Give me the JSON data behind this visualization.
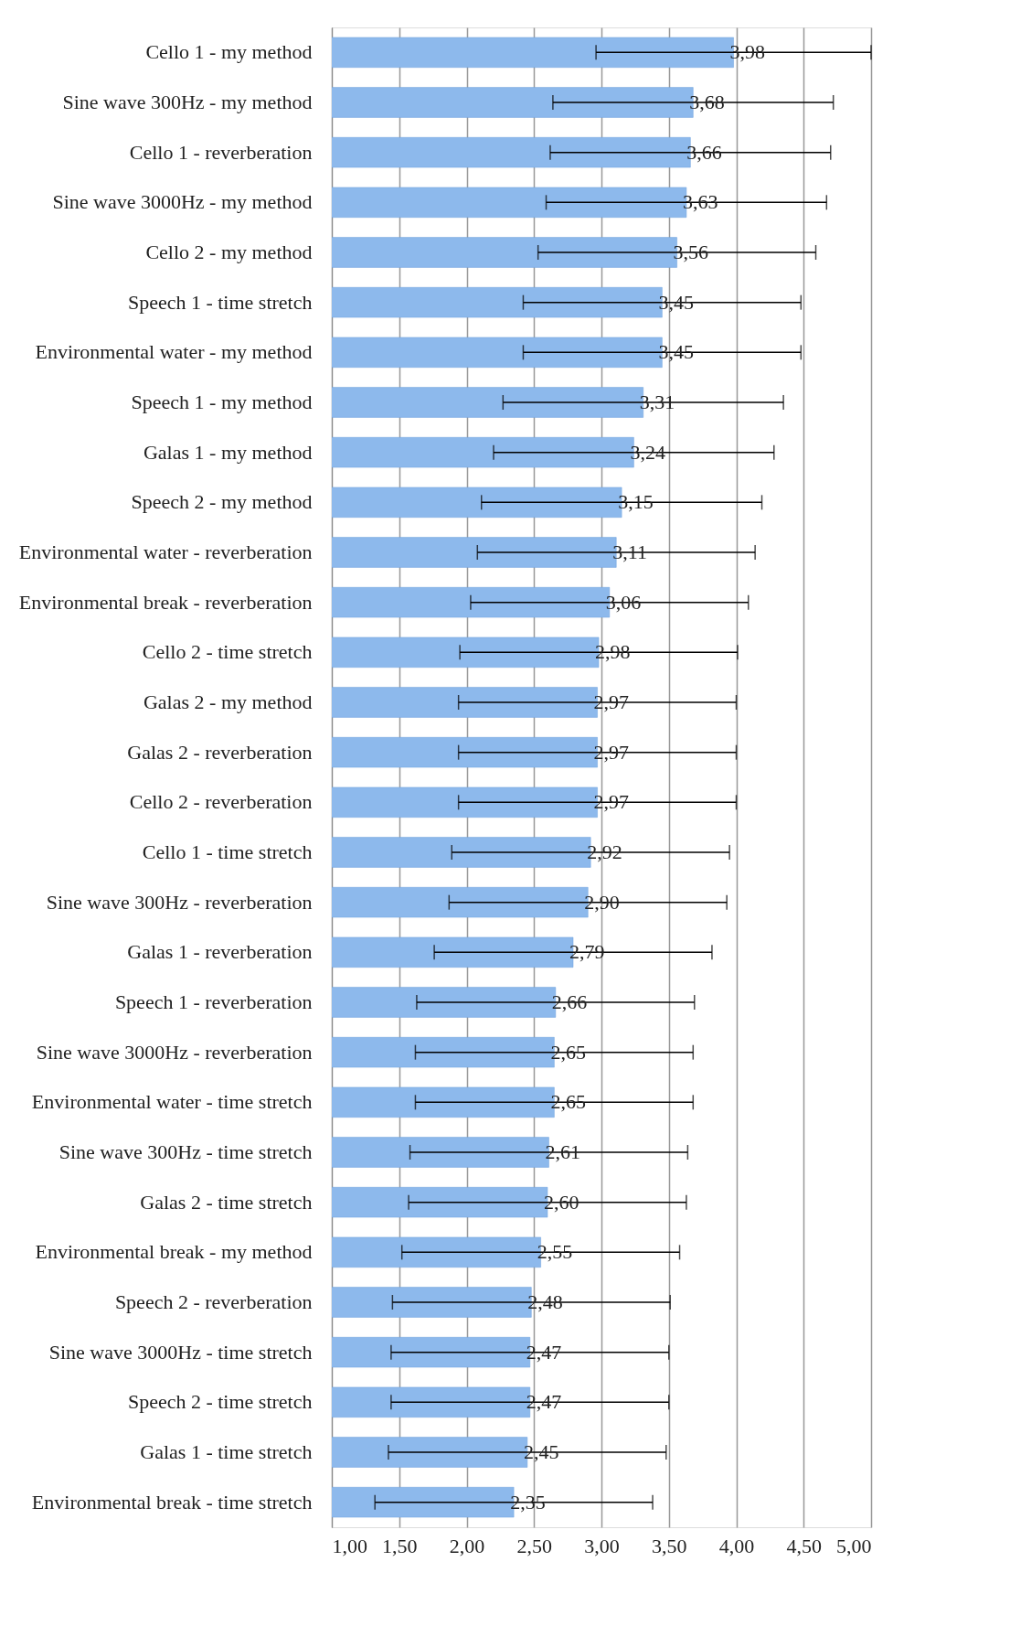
{
  "chart_data": {
    "type": "bar",
    "orientation": "horizontal",
    "color": "#8db9ec",
    "categories": [
      "Cello 1 - my method",
      "Sine wave 300Hz - my method",
      "Cello 1 - reverberation",
      "Sine wave 3000Hz - my method",
      "Cello 2 - my method",
      "Speech 1 - time stretch",
      "Environmental water - my method",
      "Speech 1 - my method",
      "Galas 1 - my method",
      "Speech 2 - my method",
      "Environmental water - reverberation",
      "Environmental break - reverberation",
      "Cello 2 - time stretch",
      "Galas 2 - my method",
      "Galas 2 - reverberation",
      "Cello 2 - reverberation",
      "Cello 1 - time stretch",
      "Sine wave 300Hz - reverberation",
      "Galas 1 - reverberation",
      "Speech 1 - reverberation",
      "Sine wave 3000Hz - reverberation",
      "Environmental water - time stretch",
      "Sine wave 300Hz - time stretch",
      "Galas 2 - time stretch",
      "Environmental break - my method",
      "Speech 2 - reverberation",
      "Sine wave 3000Hz - time stretch",
      "Speech 2 - time stretch",
      "Galas 1 - time stretch",
      "Environmental break - time stretch"
    ],
    "values": [
      3.98,
      3.68,
      3.66,
      3.63,
      3.56,
      3.45,
      3.45,
      3.31,
      3.24,
      3.15,
      3.11,
      3.06,
      2.98,
      2.97,
      2.97,
      2.97,
      2.92,
      2.9,
      2.79,
      2.66,
      2.65,
      2.65,
      2.61,
      2.6,
      2.55,
      2.48,
      2.47,
      2.47,
      2.45,
      2.35
    ],
    "value_labels": [
      "3,98",
      "3,68",
      "3,66",
      "3,63",
      "3,56",
      "3,45",
      "3,45",
      "3,31",
      "3,24",
      "3,15",
      "3,11",
      "3,06",
      "2,98",
      "2,97",
      "2,97",
      "2,97",
      "2,92",
      "2,90",
      "2,79",
      "2,66",
      "2,65",
      "2,65",
      "2,61",
      "2,60",
      "2,55",
      "2,48",
      "2,47",
      "2,47",
      "2,45",
      "2,35"
    ],
    "errors": [
      1.02,
      1.04,
      1.04,
      1.04,
      1.03,
      1.03,
      1.03,
      1.04,
      1.04,
      1.04,
      1.03,
      1.03,
      1.03,
      1.03,
      1.03,
      1.03,
      1.03,
      1.03,
      1.03,
      1.03,
      1.03,
      1.03,
      1.03,
      1.03,
      1.03,
      1.03,
      1.03,
      1.03,
      1.03,
      1.03
    ],
    "xlim": [
      1,
      5
    ],
    "xticks": [
      {
        "value": 1,
        "label": "1,00"
      },
      {
        "value": 1.5,
        "label": "1,50"
      },
      {
        "value": 2,
        "label": "2,00"
      },
      {
        "value": 2.5,
        "label": "2,50"
      },
      {
        "value": 3,
        "label": "3,00"
      },
      {
        "value": 3.5,
        "label": "3,50"
      },
      {
        "value": 4,
        "label": "4,00"
      },
      {
        "value": 4.5,
        "label": "4,50"
      },
      {
        "value": 5,
        "label": "5,00"
      }
    ],
    "grid": "x"
  }
}
